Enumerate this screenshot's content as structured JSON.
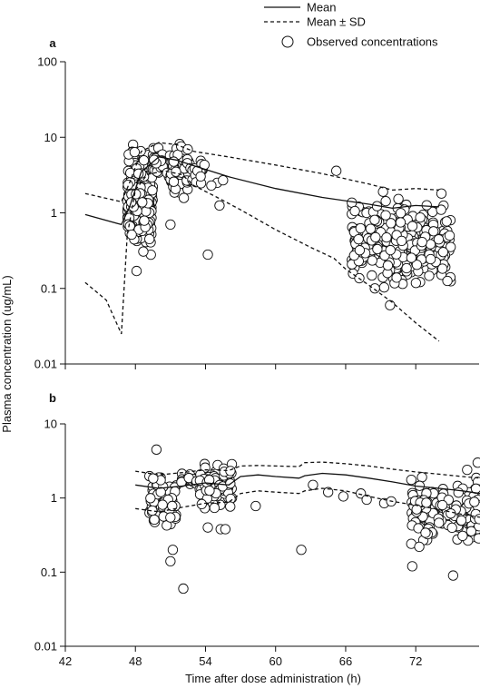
{
  "chart_data": {
    "type": "scatter",
    "legend": {
      "placement": "top",
      "entries": [
        {
          "label": "Mean",
          "style": "solid-line"
        },
        {
          "label": "Mean ± SD",
          "style": "dashed-line"
        },
        {
          "label": "Observed concentrations",
          "style": "open-circle"
        }
      ]
    },
    "xlabel": "Time after dose administration (h)",
    "ylabel": "Plasma concentration (ug/mL)",
    "x_ticks": [
      42,
      48,
      54,
      60,
      66,
      72
    ],
    "x_tick_labels": [
      "42",
      "48",
      "54",
      "60",
      "66",
      "72"
    ],
    "xlim": [
      42,
      77.5
    ],
    "y_scale": "log",
    "grid": false,
    "panels": [
      {
        "label": "a",
        "ylim": [
          0.01,
          100
        ],
        "y_ticks": [
          0.01,
          0.1,
          1,
          10,
          100
        ],
        "y_tick_labels": [
          "0.01",
          "0.1",
          "1",
          "10",
          "100"
        ],
        "series": [
          {
            "name": "Mean",
            "style": "solid",
            "x": [
              43.7,
              46.8,
              47.5,
              48.5,
              50,
              51.5,
              53,
              56,
              60,
              64,
              68,
              70,
              72,
              74
            ],
            "y": [
              0.95,
              0.7,
              1.2,
              3.5,
              5.5,
              5.0,
              4.2,
              3.0,
              2.1,
              1.6,
              1.3,
              1.15,
              1.25,
              1.2
            ]
          },
          {
            "name": "Mean + SD",
            "style": "dashed",
            "x": [
              43.7,
              46.8,
              47.5,
              48.5,
              50,
              51.5,
              53,
              56,
              60,
              64,
              68,
              70,
              72,
              74
            ],
            "y": [
              1.8,
              1.4,
              2.5,
              6.5,
              8.5,
              8.0,
              6.5,
              5.5,
              4.3,
              3.3,
              2.4,
              2.0,
              2.1,
              2.0
            ]
          },
          {
            "name": "Mean - SD",
            "style": "dashed",
            "x": [
              43.7,
              45.5,
              46.8,
              47.3,
              48,
              49,
              50.5,
              52,
              53,
              55,
              57,
              60,
              63,
              65,
              66,
              68,
              70,
              72,
              74
            ],
            "y": [
              0.12,
              0.07,
              0.025,
              0.5,
              2.0,
              3.2,
              3.6,
              3.2,
              2.3,
              1.6,
              1.1,
              0.6,
              0.35,
              0.25,
              0.18,
              0.11,
              0.065,
              0.035,
              0.02
            ]
          }
        ],
        "observed": {
          "clusters": [
            {
              "x_range": [
                47.3,
                49.5
              ],
              "y_range": [
                0.2,
                13
              ],
              "count": 230
            },
            {
              "x_range": [
                49.5,
                51
              ],
              "y_range": [
                2.5,
                8
              ],
              "count": 40
            },
            {
              "x_range": [
                51,
                52.8
              ],
              "y_range": [
                1.2,
                10
              ],
              "count": 65
            },
            {
              "x_range": [
                52.8,
                54
              ],
              "y_range": [
                2,
                5.5
              ],
              "count": 15
            },
            {
              "x_range": [
                66.5,
                75
              ],
              "y_range": [
                0.08,
                2.0
              ],
              "count": 320
            }
          ],
          "points": [
            {
              "x": 55.2,
              "y": 1.25
            },
            {
              "x": 54.2,
              "y": 0.28
            },
            {
              "x": 65.2,
              "y": 3.6
            },
            {
              "x": 69.2,
              "y": 1.9
            },
            {
              "x": 51.0,
              "y": 0.7
            },
            {
              "x": 48.1,
              "y": 0.17
            },
            {
              "x": 49.2,
              "y": 0.45
            },
            {
              "x": 55.0,
              "y": 2.5
            },
            {
              "x": 55.5,
              "y": 2.7
            },
            {
              "x": 54.5,
              "y": 2.3
            },
            {
              "x": 74.9,
              "y": 0.5
            },
            {
              "x": 74.2,
              "y": 1.8
            },
            {
              "x": 68.5,
              "y": 0.1
            },
            {
              "x": 67.2,
              "y": 0.32
            },
            {
              "x": 69.8,
              "y": 0.06
            }
          ]
        }
      },
      {
        "label": "b",
        "ylim": [
          0.01,
          10
        ],
        "y_ticks": [
          0.01,
          0.1,
          1,
          10
        ],
        "y_tick_labels": [
          "0.01",
          "0.1",
          "1",
          "10"
        ],
        "series": [
          {
            "name": "Mean",
            "style": "solid",
            "x": [
              48,
              50,
              52,
              54,
              56,
              57,
              58.5,
              60,
              62,
              62.5,
              64,
              66,
              68,
              70,
              72,
              74,
              76,
              77.5
            ],
            "y": [
              1.5,
              1.35,
              1.45,
              1.6,
              1.5,
              1.95,
              2.05,
              1.95,
              1.85,
              2.0,
              2.15,
              2.05,
              1.85,
              1.65,
              1.45,
              1.35,
              1.25,
              1.15
            ]
          },
          {
            "name": "Mean + SD",
            "style": "dashed",
            "x": [
              48,
              50,
              52,
              54,
              56,
              57,
              58.5,
              60,
              62,
              62.5,
              64,
              66,
              68,
              70,
              72,
              74,
              76,
              77.5
            ],
            "y": [
              2.3,
              2.05,
              2.2,
              2.4,
              2.35,
              2.7,
              2.75,
              2.7,
              2.65,
              3.0,
              3.05,
              2.9,
              2.7,
              2.45,
              2.25,
              2.1,
              1.95,
              1.85
            ]
          },
          {
            "name": "Mean - SD",
            "style": "dashed",
            "x": [
              48,
              50,
              52,
              54,
              56,
              57,
              58.5,
              60,
              62,
              62.5,
              64,
              66,
              68,
              70,
              72,
              74,
              76,
              77.5
            ],
            "y": [
              0.72,
              0.65,
              0.75,
              0.85,
              0.88,
              1.15,
              1.25,
              1.2,
              1.15,
              1.25,
              1.35,
              1.25,
              1.05,
              0.9,
              0.8,
              0.7,
              0.6,
              0.55
            ]
          }
        ],
        "observed": {
          "clusters": [
            {
              "x_range": [
                49.2,
                51.5
              ],
              "y_range": [
                0.3,
                3.0
              ],
              "count": 70
            },
            {
              "x_range": [
                51.5,
                53.5
              ],
              "y_range": [
                1.2,
                2.5
              ],
              "count": 20
            },
            {
              "x_range": [
                53.5,
                56.3
              ],
              "y_range": [
                0.6,
                3.4
              ],
              "count": 85
            },
            {
              "x_range": [
                71.5,
                77.5
              ],
              "y_range": [
                0.2,
                2.5
              ],
              "count": 150
            }
          ],
          "points": [
            {
              "x": 49.8,
              "y": 4.5
            },
            {
              "x": 51.0,
              "y": 0.14
            },
            {
              "x": 51.2,
              "y": 0.2
            },
            {
              "x": 52.1,
              "y": 0.06
            },
            {
              "x": 54.2,
              "y": 0.4
            },
            {
              "x": 55.3,
              "y": 0.38
            },
            {
              "x": 55.7,
              "y": 0.38
            },
            {
              "x": 58.3,
              "y": 0.78
            },
            {
              "x": 62.2,
              "y": 0.2
            },
            {
              "x": 63.2,
              "y": 1.5
            },
            {
              "x": 64.5,
              "y": 1.2
            },
            {
              "x": 65.8,
              "y": 1.05
            },
            {
              "x": 67.3,
              "y": 1.15
            },
            {
              "x": 67.8,
              "y": 0.95
            },
            {
              "x": 69.3,
              "y": 0.85
            },
            {
              "x": 69.9,
              "y": 0.9
            },
            {
              "x": 71.7,
              "y": 0.12
            },
            {
              "x": 72.3,
              "y": 0.22
            },
            {
              "x": 75.2,
              "y": 0.09
            },
            {
              "x": 76.4,
              "y": 2.4
            },
            {
              "x": 77.3,
              "y": 3.0
            }
          ]
        }
      }
    ]
  }
}
